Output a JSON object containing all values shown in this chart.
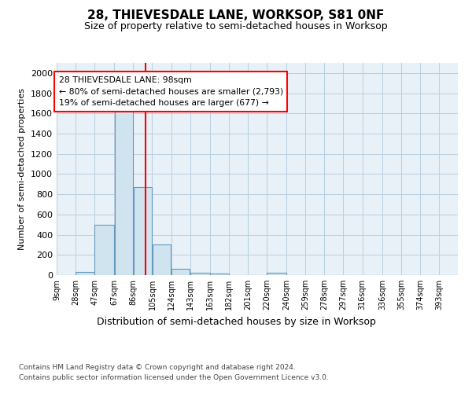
{
  "title1": "28, THIEVESDALE LANE, WORKSOP, S81 0NF",
  "title2": "Size of property relative to semi-detached houses in Worksop",
  "xlabel": "Distribution of semi-detached houses by size in Worksop",
  "ylabel": "Number of semi-detached properties",
  "bin_labels": [
    "9sqm",
    "28sqm",
    "47sqm",
    "67sqm",
    "86sqm",
    "105sqm",
    "124sqm",
    "143sqm",
    "163sqm",
    "182sqm",
    "201sqm",
    "220sqm",
    "240sqm",
    "259sqm",
    "278sqm",
    "297sqm",
    "316sqm",
    "336sqm",
    "355sqm",
    "374sqm",
    "393sqm"
  ],
  "bin_left_edges": [
    9,
    28,
    47,
    67,
    86,
    105,
    124,
    143,
    163,
    182,
    201,
    220,
    240,
    259,
    278,
    297,
    316,
    336,
    355,
    374,
    393
  ],
  "bar_heights": [
    0,
    30,
    500,
    1640,
    870,
    300,
    65,
    25,
    15,
    0,
    0,
    20,
    0,
    0,
    0,
    0,
    0,
    0,
    0,
    0,
    0
  ],
  "bar_color": "#d0e4f0",
  "bar_edge_color": "#6699bb",
  "property_size": 98,
  "vline_color": "red",
  "annotation_text1": "28 THIEVESDALE LANE: 98sqm",
  "annotation_text2": "← 80% of semi-detached houses are smaller (2,793)",
  "annotation_text3": "19% of semi-detached houses are larger (677) →",
  "annotation_box_color": "white",
  "annotation_box_edge": "red",
  "ylim": [
    0,
    2100
  ],
  "yticks": [
    0,
    200,
    400,
    600,
    800,
    1000,
    1200,
    1400,
    1600,
    1800,
    2000
  ],
  "footer1": "Contains HM Land Registry data © Crown copyright and database right 2024.",
  "footer2": "Contains public sector information licensed under the Open Government Licence v3.0.",
  "bg_color": "white",
  "plot_bg_color": "#e8f0f8",
  "grid_color": "#b8cfe0"
}
